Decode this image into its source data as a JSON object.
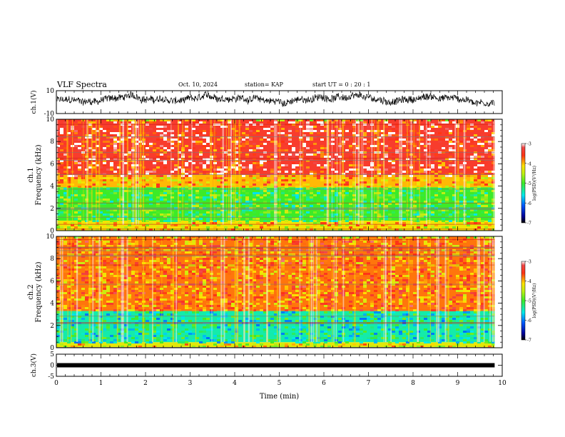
{
  "header": {
    "title": "VLF Spectra",
    "date": "Oct. 10, 2024",
    "station": "station= KAP",
    "start": "start  UT  =   0  : 20 : 1"
  },
  "chart_data": [
    {
      "type": "line",
      "title": "VLF Spectra",
      "ylabel": "ch.1(V)",
      "ylim": [
        -10,
        10
      ],
      "yticks": [
        "10",
        "-10"
      ],
      "x_range_min": [
        0,
        9.83
      ],
      "series_style": "noisy voltage waveform"
    },
    {
      "type": "heatmap",
      "ylabel_top": "ch.1",
      "ylabel": "Frequency (kHz)",
      "ylim": [
        0,
        10
      ],
      "yticks": [
        "0",
        "2",
        "4",
        "6",
        "8",
        "10"
      ],
      "colorbar": {
        "label": "log(PSD)(V²/Hz)",
        "ticks": [
          "-3",
          "-4",
          "-5",
          "-6",
          "-7"
        ],
        "range": [
          -7,
          -3
        ]
      },
      "bands_khz": [
        {
          "from": 0,
          "to": 0.9,
          "level": -4.2
        },
        {
          "from": 0.9,
          "to": 3.9,
          "level": -5.0
        },
        {
          "from": 3.9,
          "to": 5.0,
          "level": -4.0
        },
        {
          "from": 5.0,
          "to": 10,
          "level": -3.4
        }
      ]
    },
    {
      "type": "heatmap",
      "ylabel_top": "ch.2",
      "ylabel": "Frequency (kHz)",
      "ylim": [
        0,
        10
      ],
      "yticks": [
        "0",
        "2",
        "4",
        "6",
        "8",
        "10"
      ],
      "colorbar": {
        "label": "log(PSD)(V²/Hz)",
        "ticks": [
          "-3",
          "-4",
          "-5",
          "-6",
          "-7"
        ],
        "range": [
          -7,
          -3
        ]
      },
      "bands_khz": [
        {
          "from": 0,
          "to": 0.5,
          "level": -4.3
        },
        {
          "from": 0.5,
          "to": 3.3,
          "level": -5.4
        },
        {
          "from": 3.3,
          "to": 10,
          "level": -3.8
        }
      ]
    },
    {
      "type": "line",
      "ylabel": "ch.3(V)",
      "ylim": [
        -5,
        5
      ],
      "yticks": [
        "5",
        "0",
        "-5"
      ],
      "level": 0,
      "x_range_min": [
        0,
        9.83
      ]
    }
  ],
  "xaxis": {
    "label": "Time (min)",
    "range": [
      0,
      10
    ],
    "ticks": [
      "0",
      "1",
      "2",
      "3",
      "4",
      "5",
      "6",
      "7",
      "8",
      "9",
      "10"
    ]
  }
}
